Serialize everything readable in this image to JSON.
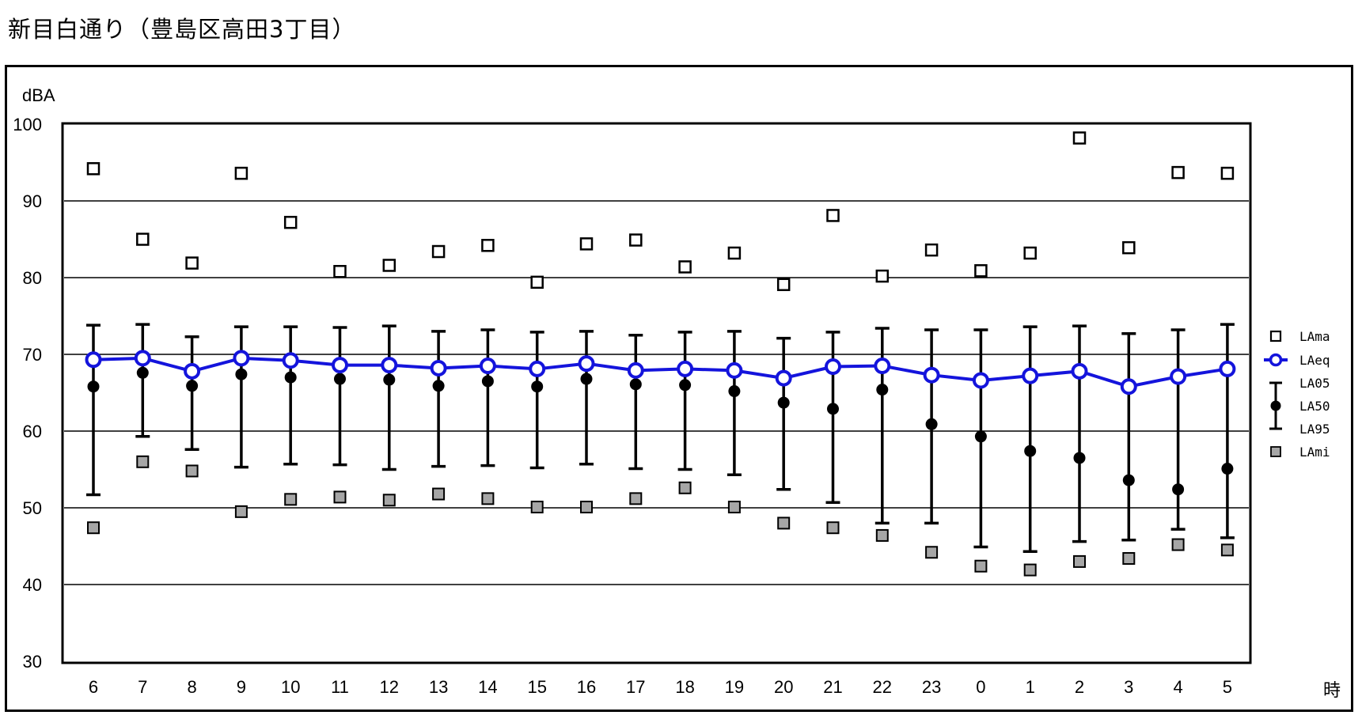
{
  "page": {
    "title": "新目白通り（豊島区高田3丁目）"
  },
  "chart_data": {
    "type": "scatter",
    "title": "新目白通り（豊島区高田3丁目）",
    "ylabel": "dBA",
    "xlabel": "時",
    "ylim": [
      30,
      100
    ],
    "yticks": [
      30,
      40,
      50,
      60,
      70,
      80,
      90,
      100
    ],
    "grid": "horizontal",
    "legend_position": "right",
    "categories": [
      "6",
      "7",
      "8",
      "9",
      "10",
      "11",
      "12",
      "13",
      "14",
      "15",
      "16",
      "17",
      "18",
      "19",
      "20",
      "21",
      "22",
      "23",
      "0",
      "1",
      "2",
      "3",
      "4",
      "5"
    ],
    "series": [
      {
        "name": "LAma",
        "marker": "open-square",
        "color": "#000000",
        "values": [
          94.2,
          85.0,
          81.9,
          93.6,
          87.2,
          80.8,
          81.6,
          83.4,
          84.2,
          79.4,
          84.4,
          84.9,
          81.4,
          83.2,
          79.1,
          88.1,
          80.2,
          83.6,
          80.9,
          83.2,
          98.2,
          83.9,
          93.7,
          93.6
        ]
      },
      {
        "name": "LAeq",
        "marker": "circle-line",
        "color": "#1414dc",
        "values": [
          69.3,
          69.5,
          67.8,
          69.5,
          69.2,
          68.6,
          68.6,
          68.2,
          68.5,
          68.1,
          68.8,
          67.9,
          68.1,
          67.9,
          66.9,
          68.4,
          68.5,
          67.3,
          66.6,
          67.2,
          67.8,
          65.8,
          67.1,
          68.1
        ]
      },
      {
        "name": "LA05",
        "marker": "error-top",
        "color": "#000000",
        "values": [
          73.8,
          73.9,
          72.3,
          73.6,
          73.6,
          73.5,
          73.7,
          73.0,
          73.2,
          72.9,
          73.0,
          72.5,
          72.9,
          73.0,
          72.1,
          72.9,
          73.4,
          73.2,
          73.2,
          73.6,
          73.7,
          72.7,
          73.2,
          73.9
        ]
      },
      {
        "name": "LA50",
        "marker": "filled-circle",
        "color": "#000000",
        "values": [
          65.8,
          67.6,
          65.9,
          67.4,
          67.0,
          66.8,
          66.7,
          65.9,
          66.5,
          65.8,
          66.8,
          66.1,
          66.0,
          65.2,
          63.7,
          62.9,
          65.4,
          60.9,
          59.3,
          57.4,
          56.5,
          53.6,
          52.4,
          55.1
        ]
      },
      {
        "name": "LA95",
        "marker": "error-bottom",
        "color": "#000000",
        "values": [
          51.7,
          59.3,
          57.6,
          55.3,
          55.7,
          55.6,
          55.0,
          55.4,
          55.5,
          55.2,
          55.7,
          55.1,
          55.0,
          54.3,
          52.4,
          50.7,
          48.0,
          48.0,
          44.9,
          44.3,
          45.6,
          45.8,
          47.2,
          46.1
        ]
      },
      {
        "name": "LAmi",
        "marker": "gray-square",
        "color": "#a6a6a6",
        "values": [
          47.4,
          56.0,
          54.8,
          49.5,
          51.1,
          51.4,
          51.0,
          51.8,
          51.2,
          50.1,
          50.1,
          51.2,
          52.6,
          50.1,
          48.0,
          47.4,
          46.4,
          44.2,
          42.4,
          41.9,
          43.0,
          43.4,
          45.2,
          44.5
        ]
      }
    ]
  }
}
